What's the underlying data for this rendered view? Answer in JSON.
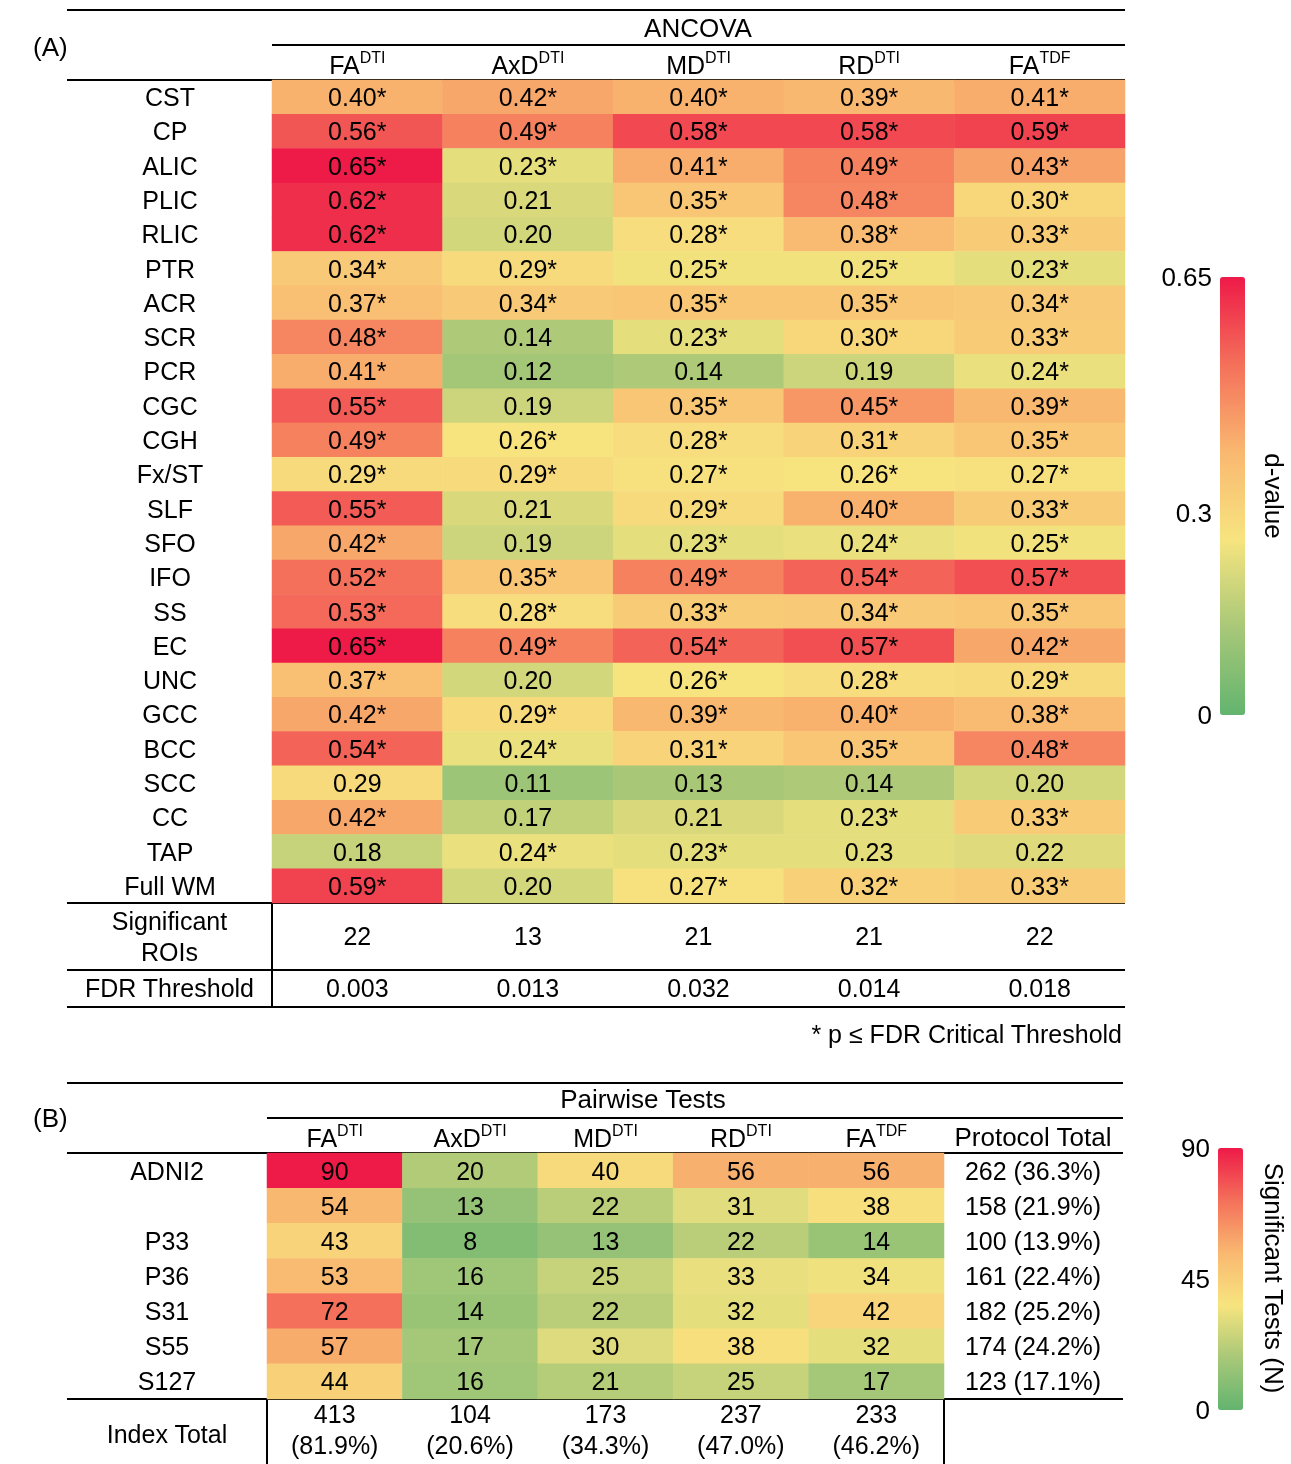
{
  "chart_data": [
    {
      "type": "heatmap",
      "title": "ANCOVA",
      "annotations": [
        "(A)"
      ],
      "clabel": "d-value",
      "clim": [
        0,
        0.65
      ],
      "cticks": [
        0,
        0.3,
        0.65
      ],
      "categories": [
        "FA$^{DTI}$",
        "AxD$^{DTI}$",
        "MD$^{DTI}$",
        "RD$^{DTI}$",
        "FA$^{TDF}$"
      ],
      "y_categories": [
        "CST",
        "CP",
        "ALIC",
        "PLIC",
        "RLIC",
        "PTR",
        "ACR",
        "SCR",
        "PCR",
        "CGC",
        "CGH",
        "Fx/ST",
        "SLF",
        "SFO",
        "IFO",
        "SS",
        "EC",
        "UNC",
        "GCC",
        "BCC",
        "SCC",
        "CC",
        "TAP",
        "Full WM"
      ],
      "cells": [
        [
          0.4,
          0.42,
          0.4,
          0.39,
          0.41
        ],
        [
          0.56,
          0.49,
          0.58,
          0.58,
          0.59
        ],
        [
          0.65,
          0.23,
          0.41,
          0.49,
          0.43
        ],
        [
          0.62,
          0.21,
          0.35,
          0.48,
          0.3
        ],
        [
          0.62,
          0.2,
          0.28,
          0.38,
          0.33
        ],
        [
          0.34,
          0.29,
          0.25,
          0.25,
          0.23
        ],
        [
          0.37,
          0.34,
          0.35,
          0.35,
          0.34
        ],
        [
          0.48,
          0.14,
          0.23,
          0.3,
          0.33
        ],
        [
          0.41,
          0.12,
          0.14,
          0.19,
          0.24
        ],
        [
          0.55,
          0.19,
          0.35,
          0.45,
          0.39
        ],
        [
          0.49,
          0.26,
          0.28,
          0.31,
          0.35
        ],
        [
          0.29,
          0.29,
          0.27,
          0.26,
          0.27
        ],
        [
          0.55,
          0.21,
          0.29,
          0.4,
          0.33
        ],
        [
          0.42,
          0.19,
          0.23,
          0.24,
          0.25
        ],
        [
          0.52,
          0.35,
          0.49,
          0.54,
          0.57
        ],
        [
          0.53,
          0.28,
          0.33,
          0.34,
          0.35
        ],
        [
          0.65,
          0.49,
          0.54,
          0.57,
          0.42
        ],
        [
          0.37,
          0.2,
          0.26,
          0.28,
          0.29
        ],
        [
          0.42,
          0.29,
          0.39,
          0.4,
          0.38
        ],
        [
          0.54,
          0.24,
          0.31,
          0.35,
          0.48
        ],
        [
          0.29,
          0.11,
          0.13,
          0.14,
          0.2
        ],
        [
          0.42,
          0.17,
          0.21,
          0.23,
          0.33
        ],
        [
          0.18,
          0.24,
          0.23,
          0.23,
          0.22
        ],
        [
          0.59,
          0.2,
          0.27,
          0.32,
          0.33
        ]
      ],
      "cell_labels": [
        [
          "0.40*",
          "0.42*",
          "0.40*",
          "0.39*",
          "0.41*"
        ],
        [
          "0.56*",
          "0.49*",
          "0.58*",
          "0.58*",
          "0.59*"
        ],
        [
          "0.65*",
          "0.23*",
          "0.41*",
          "0.49*",
          "0.43*"
        ],
        [
          "0.62*",
          "0.21",
          "0.35*",
          "0.48*",
          "0.30*"
        ],
        [
          "0.62*",
          "0.20",
          "0.28*",
          "0.38*",
          "0.33*"
        ],
        [
          "0.34*",
          "0.29*",
          "0.25*",
          "0.25*",
          "0.23*"
        ],
        [
          "0.37*",
          "0.34*",
          "0.35*",
          "0.35*",
          "0.34*"
        ],
        [
          "0.48*",
          "0.14",
          "0.23*",
          "0.30*",
          "0.33*"
        ],
        [
          "0.41*",
          "0.12",
          "0.14",
          "0.19",
          "0.24*"
        ],
        [
          "0.55*",
          "0.19",
          "0.35*",
          "0.45*",
          "0.39*"
        ],
        [
          "0.49*",
          "0.26*",
          "0.28*",
          "0.31*",
          "0.35*"
        ],
        [
          "0.29*",
          "0.29*",
          "0.27*",
          "0.26*",
          "0.27*"
        ],
        [
          "0.55*",
          "0.21",
          "0.29*",
          "0.40*",
          "0.33*"
        ],
        [
          "0.42*",
          "0.19",
          "0.23*",
          "0.24*",
          "0.25*"
        ],
        [
          "0.52*",
          "0.35*",
          "0.49*",
          "0.54*",
          "0.57*"
        ],
        [
          "0.53*",
          "0.28*",
          "0.33*",
          "0.34*",
          "0.35*"
        ],
        [
          "0.65*",
          "0.49*",
          "0.54*",
          "0.57*",
          "0.42*"
        ],
        [
          "0.37*",
          "0.20",
          "0.26*",
          "0.28*",
          "0.29*"
        ],
        [
          "0.42*",
          "0.29*",
          "0.39*",
          "0.40*",
          "0.38*"
        ],
        [
          "0.54*",
          "0.24*",
          "0.31*",
          "0.35*",
          "0.48*"
        ],
        [
          "0.29",
          "0.11",
          "0.13",
          "0.14",
          "0.20"
        ],
        [
          "0.42*",
          "0.17",
          "0.21",
          "0.23*",
          "0.33*"
        ],
        [
          "0.18",
          "0.24*",
          "0.23*",
          "0.23",
          "0.22"
        ],
        [
          "0.59*",
          "0.20",
          "0.27*",
          "0.32*",
          "0.33*"
        ]
      ]
    },
    {
      "type": "other",
      "y_categories": [
        "Significant ROIs",
        "FDR Threshold"
      ],
      "cell_labels": [
        [
          "22",
          "13",
          "21",
          "21",
          "22"
        ],
        [
          "0.003",
          "0.013",
          "0.032",
          "0.014",
          "0.018"
        ]
      ],
      "annotations": [
        "* p ≤ FDR Critical Threshold"
      ]
    },
    {
      "type": "heatmap",
      "title": "Pairwise Tests",
      "annotations": [
        "(B)",
        "Protocol Total"
      ],
      "clabel": "Significant Tests (N)",
      "clim": [
        0,
        90
      ],
      "cticks": [
        0,
        45,
        90
      ],
      "data_labels": true,
      "categories": [
        "FA$^{DTI}$",
        "AxD$^{DTI}$",
        "MD$^{DTI}$",
        "RD$^{DTI}$",
        "FA$^{TDF}$"
      ],
      "y_categories": [
        "ADNI2",
        null,
        "P33",
        "P36",
        "S31",
        "S55",
        "S127"
      ],
      "y2_categories": [
        "262 (36.3%)",
        "158 (21.9%)",
        "100 (13.9%)",
        "161 (22.4%)",
        "182 (25.2%)",
        "174 (24.2%)",
        "123 (17.1%)"
      ],
      "cells": [
        [
          90,
          20,
          40,
          56,
          56
        ],
        [
          54,
          13,
          22,
          31,
          38
        ],
        [
          43,
          8,
          13,
          22,
          14
        ],
        [
          53,
          16,
          25,
          33,
          34
        ],
        [
          72,
          14,
          22,
          32,
          42
        ],
        [
          57,
          17,
          30,
          38,
          32
        ],
        [
          44,
          16,
          21,
          25,
          17
        ]
      ]
    },
    {
      "type": "other",
      "y_categories": [
        "Index Total"
      ],
      "cell_labels": [
        [
          "413 (81.9%)",
          "104 (20.6%)",
          "173 (34.3%)",
          "237 (47.0%)",
          "233 (46.2%)"
        ]
      ]
    }
  ]
}
